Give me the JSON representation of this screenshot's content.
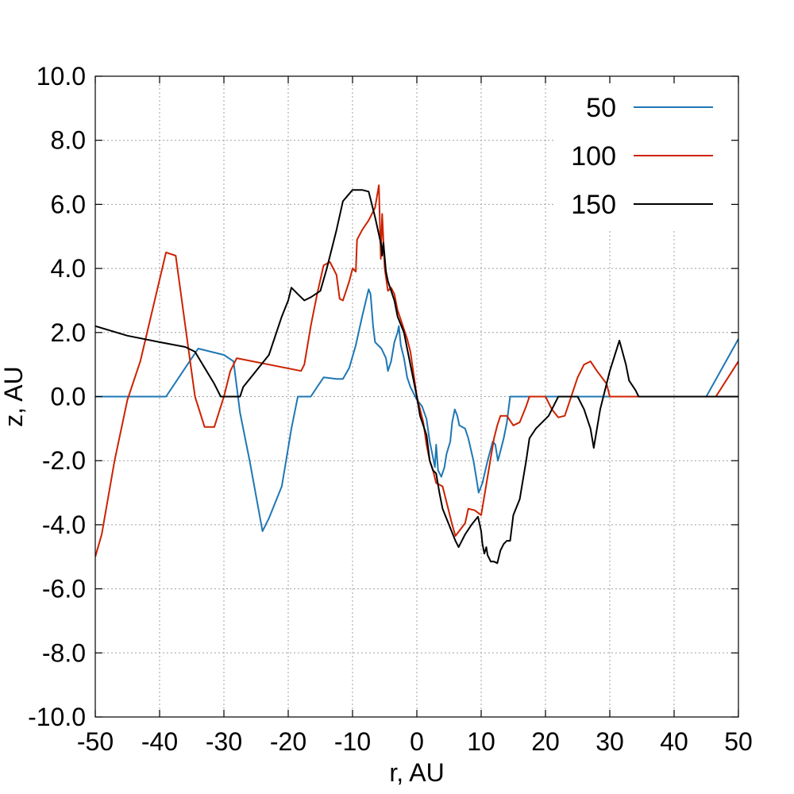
{
  "chart_data": {
    "type": "line",
    "title": "",
    "xlabel": "r, AU",
    "ylabel": "z, AU",
    "xlim": [
      -50,
      50
    ],
    "ylim": [
      -10,
      10
    ],
    "xticks": [
      -50,
      -40,
      -30,
      -20,
      -10,
      0,
      10,
      20,
      30,
      40,
      50
    ],
    "yticks": [
      -10,
      -8,
      -6,
      -4,
      -2,
      0,
      2,
      4,
      6,
      8,
      10
    ],
    "xtick_labels": [
      "-50",
      "-40",
      "-30",
      "-20",
      "-10",
      "0",
      "10",
      "20",
      "30",
      "40",
      "50"
    ],
    "ytick_labels": [
      "-10.0",
      "-8.0",
      "-6.0",
      "-4.0",
      "-2.0",
      "0.0",
      "2.0",
      "4.0",
      "6.0",
      "8.0",
      "10.0"
    ],
    "grid": true,
    "legend_position": "top-right",
    "series": [
      {
        "name": "50",
        "color": "#1f77b4",
        "points": [
          [
            -50,
            0
          ],
          [
            -39,
            0
          ],
          [
            -37,
            0.6
          ],
          [
            -35,
            1.2
          ],
          [
            -34,
            1.5
          ],
          [
            -32,
            1.4
          ],
          [
            -30,
            1.3
          ],
          [
            -28.5,
            1.1
          ],
          [
            -27.5,
            -0.5
          ],
          [
            -26,
            -2
          ],
          [
            -24,
            -4.2
          ],
          [
            -23,
            -3.8
          ],
          [
            -21,
            -2.8
          ],
          [
            -19.5,
            -1
          ],
          [
            -18.5,
            0
          ],
          [
            -16.5,
            0
          ],
          [
            -15.5,
            0.3
          ],
          [
            -14.5,
            0.6
          ],
          [
            -12.5,
            0.55
          ],
          [
            -11.5,
            0.55
          ],
          [
            -10.5,
            0.9
          ],
          [
            -9.5,
            1.6
          ],
          [
            -8.5,
            2.5
          ],
          [
            -7.5,
            3.35
          ],
          [
            -7.2,
            3.2
          ],
          [
            -6.8,
            2.2
          ],
          [
            -6.5,
            1.7
          ],
          [
            -5.5,
            1.5
          ],
          [
            -4.8,
            1.2
          ],
          [
            -4.5,
            0.8
          ],
          [
            -4,
            1.1
          ],
          [
            -3.5,
            1.7
          ],
          [
            -3,
            2
          ],
          [
            -2.8,
            2.2
          ],
          [
            -2.5,
            1.6
          ],
          [
            -2,
            1.2
          ],
          [
            -1.5,
            0.6
          ],
          [
            -1,
            0.3
          ],
          [
            0,
            -0.1
          ],
          [
            0.8,
            -0.3
          ],
          [
            1.5,
            -0.7
          ],
          [
            2,
            -1.4
          ],
          [
            2.5,
            -1.9
          ],
          [
            2.8,
            -2.2
          ],
          [
            3,
            -1.5
          ],
          [
            3.3,
            -2.3
          ],
          [
            3.8,
            -2.5
          ],
          [
            4.3,
            -2.2
          ],
          [
            4.6,
            -1.8
          ],
          [
            5.2,
            -1.4
          ],
          [
            5.5,
            -0.8
          ],
          [
            5.9,
            -0.4
          ],
          [
            6.3,
            -0.6
          ],
          [
            6.6,
            -0.9
          ],
          [
            7.5,
            -1
          ],
          [
            8,
            -1.3
          ],
          [
            8.8,
            -2
          ],
          [
            9.3,
            -2.6
          ],
          [
            9.6,
            -3
          ],
          [
            10.2,
            -2.7
          ],
          [
            11,
            -2
          ],
          [
            11.8,
            -1.4
          ],
          [
            12.2,
            -1.5
          ],
          [
            12.6,
            -2
          ],
          [
            13,
            -1.7
          ],
          [
            13.5,
            -1.3
          ],
          [
            14,
            -0.8
          ],
          [
            14.5,
            0
          ],
          [
            16,
            0
          ],
          [
            45,
            0
          ],
          [
            50,
            1.8
          ]
        ]
      },
      {
        "name": "100",
        "color": "#cc2200",
        "points": [
          [
            -50,
            -5
          ],
          [
            -49,
            -4.3
          ],
          [
            -47,
            -2
          ],
          [
            -45,
            -0.1
          ],
          [
            -43,
            1.1
          ],
          [
            -41,
            2.8
          ],
          [
            -39,
            4.5
          ],
          [
            -37.5,
            4.4
          ],
          [
            -36,
            2.2
          ],
          [
            -34.5,
            0
          ],
          [
            -33,
            -0.95
          ],
          [
            -31.5,
            -0.95
          ],
          [
            -30,
            0
          ],
          [
            -29,
            0.8
          ],
          [
            -28,
            1.2
          ],
          [
            -18,
            0.8
          ],
          [
            -17.5,
            1
          ],
          [
            -16.5,
            2.2
          ],
          [
            -15.5,
            3.2
          ],
          [
            -14.5,
            4.1
          ],
          [
            -13.5,
            4.2
          ],
          [
            -12.5,
            3.8
          ],
          [
            -12,
            3.05
          ],
          [
            -11.5,
            3
          ],
          [
            -10.5,
            3.6
          ],
          [
            -10,
            4
          ],
          [
            -9.5,
            3.9
          ],
          [
            -9.3,
            4.9
          ],
          [
            -8.5,
            5.2
          ],
          [
            -7.5,
            5.5
          ],
          [
            -6.5,
            5.9
          ],
          [
            -5.9,
            6.6
          ],
          [
            -5.6,
            4.3
          ],
          [
            -5.4,
            5.7
          ],
          [
            -5,
            4
          ],
          [
            -4.5,
            3.3
          ],
          [
            -4,
            3.4
          ],
          [
            -3.5,
            3.2
          ],
          [
            -3,
            2.7
          ],
          [
            -2.5,
            2.4
          ],
          [
            -2,
            2.1
          ],
          [
            -1.5,
            1.8
          ],
          [
            -1,
            1.4
          ],
          [
            0,
            0
          ],
          [
            1,
            -0.8
          ],
          [
            1.5,
            -1.5
          ],
          [
            2,
            -2
          ],
          [
            2.5,
            -2.3
          ],
          [
            3,
            -2.7
          ],
          [
            4,
            -2.8
          ],
          [
            5,
            -3.6
          ],
          [
            5.5,
            -4
          ],
          [
            6,
            -4.35
          ],
          [
            7.5,
            -3.95
          ],
          [
            8,
            -3.5
          ],
          [
            9,
            -3.55
          ],
          [
            10,
            -3.7
          ],
          [
            11,
            -2.5
          ],
          [
            12,
            -1.3
          ],
          [
            12.5,
            -0.9
          ],
          [
            13,
            -0.6
          ],
          [
            14,
            -0.6
          ],
          [
            15,
            -0.9
          ],
          [
            16,
            -0.8
          ],
          [
            17,
            -0.3
          ],
          [
            17.5,
            0
          ],
          [
            19,
            0
          ],
          [
            20,
            0
          ],
          [
            21,
            -0.4
          ],
          [
            22,
            -0.65
          ],
          [
            23,
            -0.6
          ],
          [
            24,
            0
          ],
          [
            25,
            0.6
          ],
          [
            26,
            1
          ],
          [
            27,
            1.1
          ],
          [
            28,
            0.8
          ],
          [
            29.5,
            0.4
          ],
          [
            30,
            0
          ],
          [
            46.5,
            0
          ],
          [
            50,
            1.1
          ]
        ]
      },
      {
        "name": "150",
        "color": "#000000",
        "points": [
          [
            -50,
            2.2
          ],
          [
            -45,
            1.9
          ],
          [
            -40,
            1.7
          ],
          [
            -36,
            1.55
          ],
          [
            -34.5,
            1.4
          ],
          [
            -33,
            0.9
          ],
          [
            -31.5,
            0.4
          ],
          [
            -30.5,
            0
          ],
          [
            -27.5,
            0
          ],
          [
            -27,
            0.3
          ],
          [
            -25,
            0.8
          ],
          [
            -23,
            1.3
          ],
          [
            -21,
            2.5
          ],
          [
            -20,
            3
          ],
          [
            -19.5,
            3.4
          ],
          [
            -18.5,
            3.2
          ],
          [
            -17.5,
            3
          ],
          [
            -16.5,
            3.1
          ],
          [
            -15,
            3.3
          ],
          [
            -14,
            4
          ],
          [
            -12.5,
            5.2
          ],
          [
            -11.5,
            6.1
          ],
          [
            -10,
            6.45
          ],
          [
            -8.5,
            6.45
          ],
          [
            -7.5,
            6.4
          ],
          [
            -6.5,
            5.6
          ],
          [
            -5.5,
            4.7
          ],
          [
            -5.4,
            4.4
          ],
          [
            -5.2,
            4.8
          ],
          [
            -4.8,
            3.9
          ],
          [
            -4.5,
            3.6
          ],
          [
            -3.5,
            3
          ],
          [
            -3,
            2.5
          ],
          [
            -2,
            2
          ],
          [
            -1.5,
            1.5
          ],
          [
            0,
            0
          ],
          [
            0.5,
            -0.6
          ],
          [
            1.5,
            -1.2
          ],
          [
            2,
            -2
          ],
          [
            2.5,
            -2.3
          ],
          [
            3,
            -2.4
          ],
          [
            3.5,
            -3
          ],
          [
            4,
            -3.5
          ],
          [
            5,
            -4
          ],
          [
            6,
            -4.5
          ],
          [
            6.5,
            -4.7
          ],
          [
            7.5,
            -4.3
          ],
          [
            8.5,
            -4
          ],
          [
            9.5,
            -3.75
          ],
          [
            10,
            -4.2
          ],
          [
            10.2,
            -4.6
          ],
          [
            10.5,
            -4.9
          ],
          [
            10.8,
            -4.7
          ],
          [
            11,
            -4.95
          ],
          [
            11.5,
            -5.15
          ],
          [
            12,
            -5.15
          ],
          [
            12.5,
            -5.2
          ],
          [
            13,
            -4.8
          ],
          [
            13.5,
            -4.6
          ],
          [
            14,
            -4.5
          ],
          [
            14.5,
            -4.5
          ],
          [
            15,
            -3.7
          ],
          [
            16,
            -3.2
          ],
          [
            16.5,
            -2.6
          ],
          [
            17,
            -2
          ],
          [
            17.5,
            -1.3
          ],
          [
            18.5,
            -1
          ],
          [
            19.5,
            -0.8
          ],
          [
            20.5,
            -0.6
          ],
          [
            21.5,
            -0.2
          ],
          [
            22,
            0
          ],
          [
            25,
            0
          ],
          [
            26,
            -0.4
          ],
          [
            27,
            -1
          ],
          [
            27.5,
            -1.6
          ],
          [
            28.5,
            -0.4
          ],
          [
            30,
            0.8
          ],
          [
            31.5,
            1.75
          ],
          [
            32.5,
            1
          ],
          [
            33,
            0.5
          ],
          [
            34,
            0.2
          ],
          [
            34.5,
            0
          ],
          [
            50,
            0
          ]
        ]
      }
    ]
  }
}
